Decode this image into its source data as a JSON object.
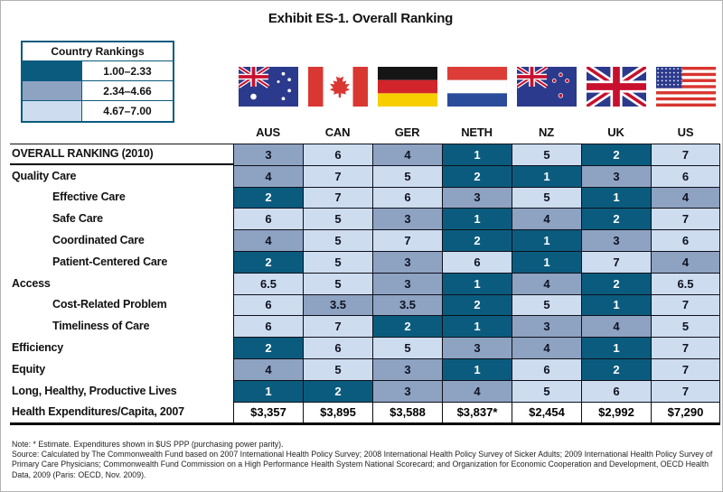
{
  "title": "Exhibit ES-1. Overall Ranking",
  "legend": {
    "title": "Country Rankings",
    "bands": [
      {
        "range": "1.00–2.33",
        "level": "dark"
      },
      {
        "range": "2.34–4.66",
        "level": "mid"
      },
      {
        "range": "4.67–7.00",
        "level": "light"
      }
    ]
  },
  "countries": [
    {
      "code": "AUS",
      "flag_icon": "australia-flag-icon"
    },
    {
      "code": "CAN",
      "flag_icon": "canada-flag-icon"
    },
    {
      "code": "GER",
      "flag_icon": "germany-flag-icon"
    },
    {
      "code": "NETH",
      "flag_icon": "netherlands-flag-icon"
    },
    {
      "code": "NZ",
      "flag_icon": "new-zealand-flag-icon"
    },
    {
      "code": "UK",
      "flag_icon": "uk-flag-icon"
    },
    {
      "code": "US",
      "flag_icon": "us-flag-icon"
    }
  ],
  "colors": {
    "rank_dark": "#0B5B7E",
    "rank_mid": "#8EA2C2",
    "rank_light": "#CEDCF0",
    "grid_line": "#0d1019",
    "legend_border": "#0B5B7E"
  },
  "chart_data": {
    "type": "table",
    "title": "Exhibit ES-1. Overall Ranking",
    "categories": [
      "AUS",
      "CAN",
      "GER",
      "NETH",
      "NZ",
      "UK",
      "US"
    ],
    "color_thresholds": {
      "dark": [
        1.0,
        2.33
      ],
      "mid": [
        2.34,
        4.66
      ],
      "light": [
        4.67,
        7.0
      ]
    },
    "rows": [
      {
        "label": "OVERALL RANKING (2010)",
        "indent": false,
        "values": [
          "3",
          "6",
          "4",
          "1",
          "5",
          "2",
          "7"
        ]
      },
      {
        "label": "Quality Care",
        "indent": false,
        "values": [
          "4",
          "7",
          "5",
          "2",
          "1",
          "3",
          "6"
        ]
      },
      {
        "label": "Effective Care",
        "indent": true,
        "values": [
          "2",
          "7",
          "6",
          "3",
          "5",
          "1",
          "4"
        ]
      },
      {
        "label": "Safe Care",
        "indent": true,
        "values": [
          "6",
          "5",
          "3",
          "1",
          "4",
          "2",
          "7"
        ]
      },
      {
        "label": "Coordinated Care",
        "indent": true,
        "values": [
          "4",
          "5",
          "7",
          "2",
          "1",
          "3",
          "6"
        ]
      },
      {
        "label": "Patient-Centered Care",
        "indent": true,
        "values": [
          "2",
          "5",
          "3",
          "6",
          "1",
          "7",
          "4"
        ]
      },
      {
        "label": "Access",
        "indent": false,
        "values": [
          "6.5",
          "5",
          "3",
          "1",
          "4",
          "2",
          "6.5"
        ]
      },
      {
        "label": "Cost-Related Problem",
        "indent": true,
        "values": [
          "6",
          "3.5",
          "3.5",
          "2",
          "5",
          "1",
          "7"
        ]
      },
      {
        "label": "Timeliness of Care",
        "indent": true,
        "values": [
          "6",
          "7",
          "2",
          "1",
          "3",
          "4",
          "5"
        ]
      },
      {
        "label": "Efficiency",
        "indent": false,
        "values": [
          "2",
          "6",
          "5",
          "3",
          "4",
          "1",
          "7"
        ]
      },
      {
        "label": "Equity",
        "indent": false,
        "values": [
          "4",
          "5",
          "3",
          "1",
          "6",
          "2",
          "7"
        ]
      },
      {
        "label": "Long, Healthy, Productive Lives",
        "indent": false,
        "values": [
          "1",
          "2",
          "3",
          "4",
          "5",
          "6",
          "7"
        ]
      },
      {
        "label": "Health Expenditures/Capita, 2007",
        "indent": false,
        "values": [
          "$3,357",
          "$3,895",
          "$3,588",
          "$3,837*",
          "$2,454",
          "$2,992",
          "$7,290"
        ]
      }
    ]
  },
  "notes": {
    "note_line": "Note: * Estimate. Expenditures shown in $US PPP (purchasing power parity).",
    "source_line": "Source: Calculated by The Commonwealth Fund based on 2007 International Health Policy Survey; 2008 International Health Policy Survey of Sicker Adults; 2009 International Health Policy Survey of Primary Care Physicians; Commonwealth Fund Commission on a High Performance Health System National Scorecard; and Organization for Economic Cooperation and Development, OECD Health Data, 2009 (Paris: OECD, Nov. 2009)."
  }
}
